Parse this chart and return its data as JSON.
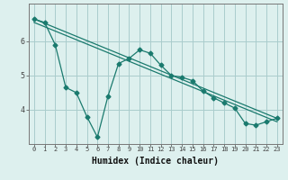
{
  "xlabel": "Humidex (Indice chaleur)",
  "bg_color": "#ddf0ee",
  "grid_color": "#aacccc",
  "line_color": "#1a7a6e",
  "line1_x": [
    0,
    1,
    2,
    3,
    4,
    5,
    6,
    7,
    8,
    9,
    10,
    11,
    12,
    13,
    14,
    15,
    16,
    17,
    18,
    19,
    20,
    21,
    22,
    23
  ],
  "line1_y": [
    6.65,
    6.55,
    5.9,
    4.65,
    4.5,
    3.8,
    3.2,
    4.4,
    5.35,
    5.5,
    5.75,
    5.65,
    5.3,
    5.0,
    4.95,
    4.85,
    4.55,
    4.35,
    4.2,
    4.05,
    3.6,
    3.55,
    3.65,
    3.75
  ],
  "line2_x": [
    0,
    23
  ],
  "line2_y": [
    6.65,
    3.75
  ],
  "line3_x": [
    0,
    23
  ],
  "line3_y": [
    6.55,
    3.65
  ],
  "ylim": [
    3.0,
    7.1
  ],
  "xlim": [
    -0.5,
    23.5
  ],
  "yticks": [
    4,
    5,
    6
  ],
  "xticks": [
    0,
    1,
    2,
    3,
    4,
    5,
    6,
    7,
    8,
    9,
    10,
    11,
    12,
    13,
    14,
    15,
    16,
    17,
    18,
    19,
    20,
    21,
    22,
    23
  ],
  "xlabel_fontsize": 7,
  "tick_fontsize_x": 5,
  "tick_fontsize_y": 6
}
